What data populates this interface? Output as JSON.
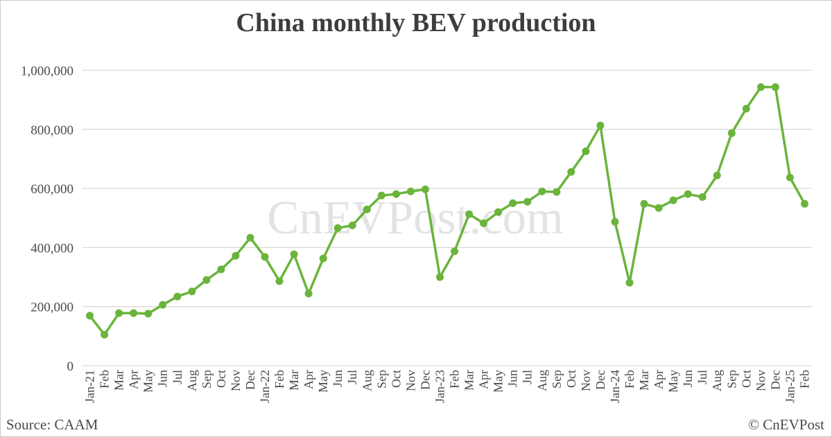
{
  "title": "China monthly BEV production",
  "watermark": "CnEVPost.com",
  "footer": {
    "source": "Source: CAAM",
    "copyright": "© CnEVPost"
  },
  "colors": {
    "line": "#6ab43c",
    "marker": "#6ab43c",
    "grid": "#d9d9d9",
    "axis_text": "#4a4a4a",
    "title_text": "#3d3d3d",
    "watermark_text": "#e3e3e3",
    "background": "#ffffff",
    "border": "#c9c9c9"
  },
  "chart_data": {
    "type": "line",
    "title": "China monthly BEV production",
    "xlabel": "",
    "ylabel": "",
    "grid": true,
    "legend": false,
    "marker": "circle",
    "ylim": [
      0,
      1000000
    ],
    "yticks": {
      "values": [
        0,
        200000,
        400000,
        600000,
        800000,
        1000000
      ],
      "labels": [
        "0",
        "200,000",
        "400,000",
        "600,000",
        "800,000",
        "1,000,000"
      ]
    },
    "categories": [
      "Jan-21",
      "Feb",
      "Mar",
      "Apr",
      "May",
      "Jun",
      "Jul",
      "Aug",
      "Sep",
      "Oct",
      "Nov",
      "Dec",
      "Jan-22",
      "Feb",
      "Mar",
      "Apr",
      "May",
      "Jun",
      "Jul",
      "Aug",
      "Sep",
      "Oct",
      "Nov",
      "Dec",
      "Jan-23",
      "Feb",
      "Mar",
      "Apr",
      "May",
      "Jun",
      "Jul",
      "Aug",
      "Sep",
      "Oct",
      "Nov",
      "Dec",
      "Jan-24",
      "Feb",
      "Mar",
      "Apr",
      "May",
      "Jun",
      "Jul",
      "Aug",
      "Sep",
      "Oct",
      "Nov",
      "Dec",
      "Jan-25",
      "Feb"
    ],
    "values": [
      169000,
      105000,
      178000,
      178000,
      176000,
      206000,
      234000,
      251000,
      290000,
      326000,
      372000,
      433000,
      368000,
      286000,
      377000,
      244000,
      363000,
      466000,
      475000,
      529000,
      576000,
      581000,
      590000,
      597000,
      300000,
      387000,
      513000,
      482000,
      520000,
      550000,
      555000,
      590000,
      588000,
      656000,
      726000,
      813000,
      487000,
      281000,
      548000,
      534000,
      560000,
      581000,
      571000,
      644000,
      787000,
      870000,
      943000,
      943000,
      637000,
      548000
    ]
  }
}
